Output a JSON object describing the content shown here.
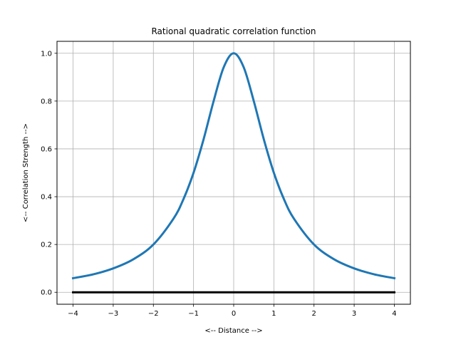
{
  "chart_data": {
    "type": "line",
    "title": "Rational quadratic correlation function",
    "xlabel": "<-- Distance -->",
    "ylabel": "<-- Correlation Strength -->",
    "xlim": [
      -4.4,
      4.4
    ],
    "ylim": [
      -0.05,
      1.05
    ],
    "xticks": [
      -4,
      -3,
      -2,
      -1,
      0,
      1,
      2,
      3,
      4
    ],
    "xtick_labels": [
      "−4",
      "−3",
      "−2",
      "−1",
      "0",
      "1",
      "2",
      "3",
      "4"
    ],
    "yticks": [
      0.0,
      0.2,
      0.4,
      0.6,
      0.8,
      1.0
    ],
    "ytick_labels": [
      "0.0",
      "0.2",
      "0.4",
      "0.6",
      "0.8",
      "1.0"
    ],
    "grid": true,
    "series": [
      {
        "color": "#1f77b4",
        "x": [
          -4,
          -3.5,
          -3,
          -2.5,
          -2,
          -1.5,
          -1.25,
          -1,
          -0.75,
          -0.5,
          -0.25,
          0,
          0.25,
          0.5,
          0.75,
          1,
          1.25,
          1.5,
          2,
          2.5,
          3,
          3.5,
          4
        ],
        "y": [
          0.059,
          0.075,
          0.1,
          0.138,
          0.2,
          0.308,
          0.39,
          0.5,
          0.64,
          0.8,
          0.941,
          1.0,
          0.941,
          0.8,
          0.64,
          0.5,
          0.39,
          0.308,
          0.2,
          0.138,
          0.1,
          0.075,
          0.059
        ]
      },
      {
        "color": "#000000",
        "x": [
          -4,
          4
        ],
        "y": [
          0,
          0
        ]
      }
    ]
  }
}
